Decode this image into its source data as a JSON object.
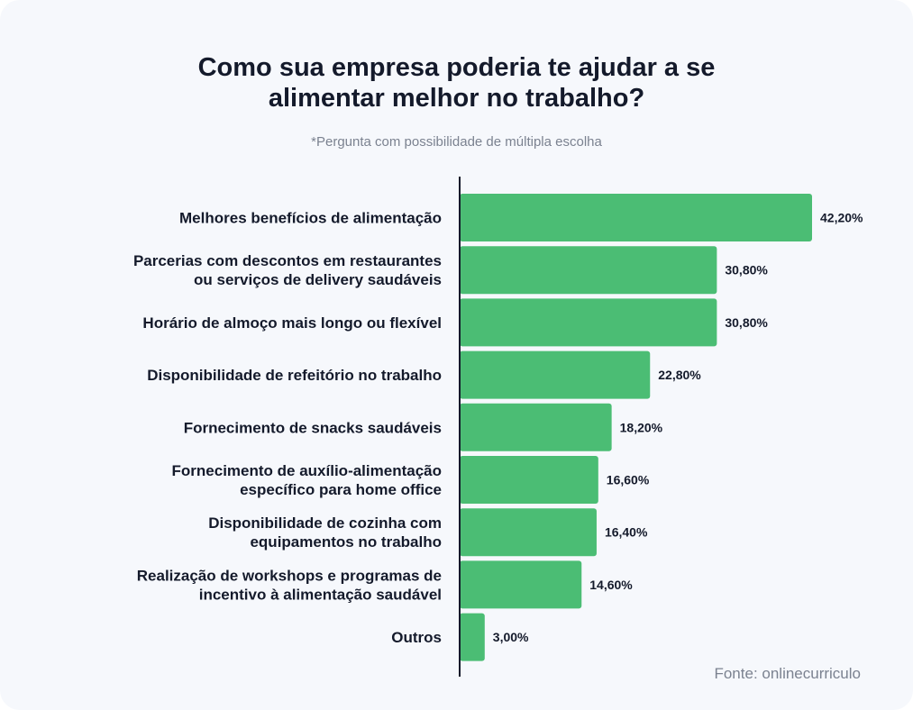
{
  "chart_data": {
    "type": "bar",
    "orientation": "horizontal",
    "title": "Como sua empresa poderia te ajudar a se alimentar melhor no trabalho?",
    "title_lines": [
      "Como sua empresa poderia te ajudar a se",
      "alimentar melhor no trabalho?"
    ],
    "subtitle": "*Pergunta com possibilidade de múltipla escolha",
    "categories": [
      [
        "Melhores benefícios de alimentação"
      ],
      [
        "Parcerias com descontos em restaurantes",
        "ou serviços de delivery saudáveis"
      ],
      [
        "Horário de almoço mais longo ou flexível"
      ],
      [
        "Disponibilidade de refeitório no trabalho"
      ],
      [
        "Fornecimento de snacks saudáveis"
      ],
      [
        "Fornecimento de auxílio-alimentação",
        "específico para home office"
      ],
      [
        "Disponibilidade de cozinha com",
        "equipamentos no trabalho"
      ],
      [
        "Realização de workshops e programas de",
        "incentivo à alimentação saudável"
      ],
      [
        "Outros"
      ]
    ],
    "values": [
      42.2,
      30.8,
      30.8,
      22.8,
      18.2,
      16.6,
      16.4,
      14.6,
      3.0
    ],
    "value_labels": [
      "42,20%",
      "30,80%",
      "30,80%",
      "22,80%",
      "18,20%",
      "16,60%",
      "16,40%",
      "14,60%",
      "3,00%"
    ],
    "xlim": [
      0,
      42.2
    ],
    "bar_color": "#4bbd74",
    "grid": false,
    "legend": "none"
  },
  "source": "Fonte: onlinecurriculo"
}
